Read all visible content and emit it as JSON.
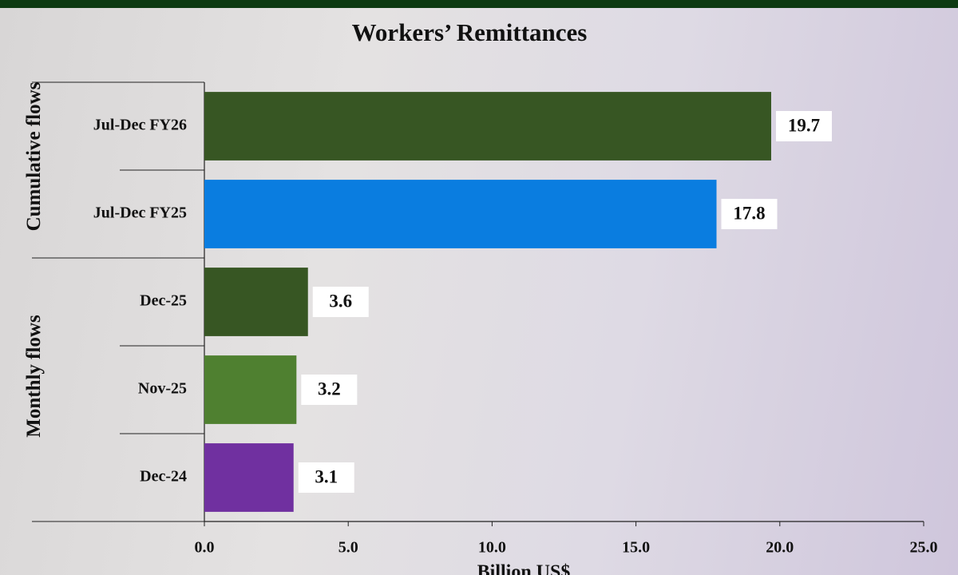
{
  "chart_data": {
    "type": "bar",
    "orientation": "horizontal",
    "title": "Workers’ Remittances",
    "categories": [
      "Jul-Dec FY26",
      "Jul-Dec FY25",
      "Dec-25",
      "Nov-25",
      "Dec-24"
    ],
    "values": [
      19.7,
      17.8,
      3.6,
      3.2,
      3.1
    ],
    "colors": [
      "#375623",
      "#0a7de0",
      "#375623",
      "#4f8030",
      "#7030a0"
    ],
    "groups": [
      {
        "name": "Cumulative flows",
        "categories": [
          "Jul-Dec FY26",
          "Jul-Dec FY25"
        ]
      },
      {
        "name": "Monthly flows",
        "categories": [
          "Dec-25",
          "Nov-25",
          "Dec-24"
        ]
      }
    ],
    "xlabel": "Billion US$",
    "xlim": [
      0,
      25
    ],
    "xticks": [
      {
        "value": 0,
        "label": "0.0"
      },
      {
        "value": 5,
        "label": "5.0"
      },
      {
        "value": 10,
        "label": "10.0"
      },
      {
        "value": 15,
        "label": "15.0"
      },
      {
        "value": 20,
        "label": "20.0"
      },
      {
        "value": 25,
        "label": "25.0"
      }
    ],
    "grid": false
  }
}
